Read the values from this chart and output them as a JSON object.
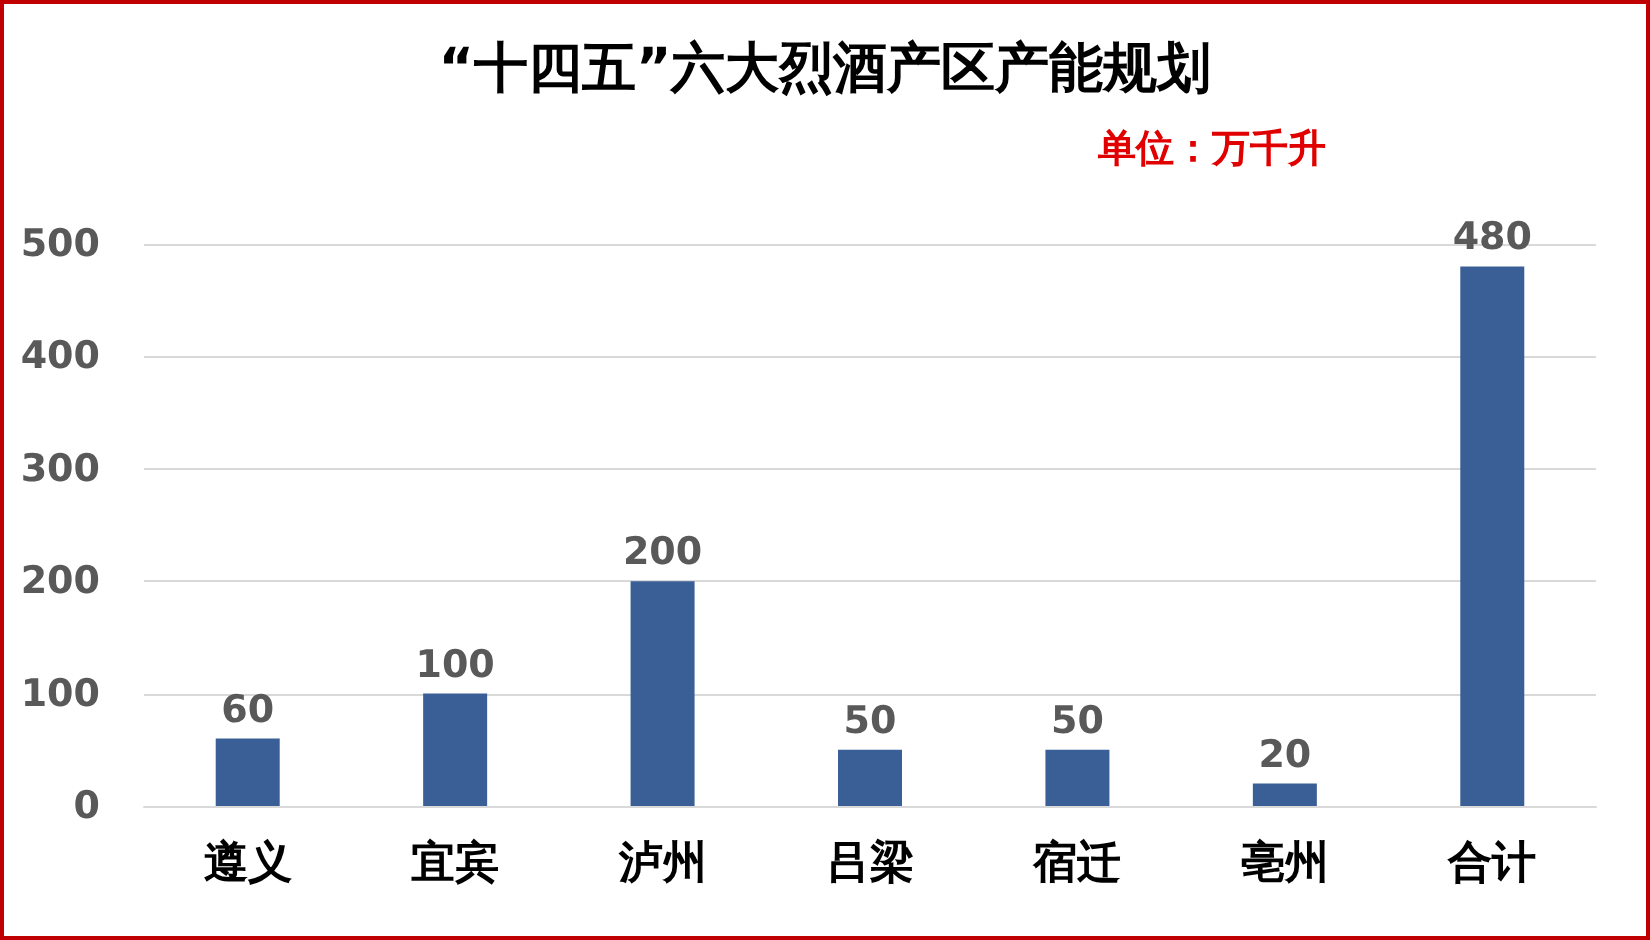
{
  "chart_data": {
    "type": "bar",
    "title": "“十四五”六大烈酒产区产能规划",
    "subtitle": "单位：万千升",
    "categories": [
      "遵义",
      "宜宾",
      "泸州",
      "吕梁",
      "宿迁",
      "亳州",
      "合计"
    ],
    "values": [
      60,
      100,
      200,
      50,
      50,
      20,
      480
    ],
    "color": "#3a5f96",
    "ylim": [
      0,
      500
    ],
    "yticks": [
      0,
      100,
      200,
      300,
      400,
      500
    ],
    "grid": "y",
    "data_labels": true
  }
}
